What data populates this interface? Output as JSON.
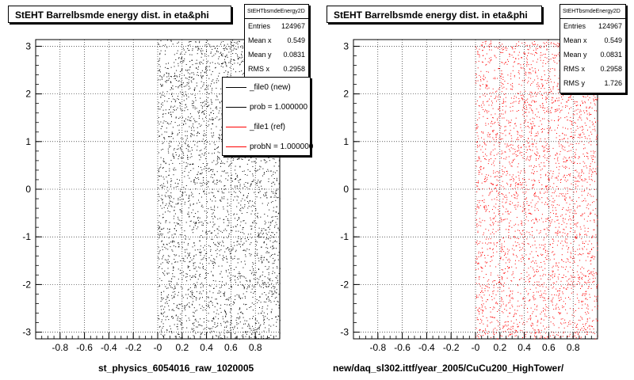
{
  "chart_data": [
    {
      "type": "scatter",
      "title": "StEHT Barrelbsmde energy dist. in eta&phi",
      "xlabel": "st_physics_6054016_raw_1020005",
      "ylabel": "",
      "xlim": [
        -1.0,
        1.0
      ],
      "ylim": [
        -3.14,
        3.14
      ],
      "x_ticks": [
        "-0.8",
        "-0.6",
        "-0.4",
        "-0.2",
        "-0",
        "0.2",
        "0.4",
        "0.6",
        "0.8"
      ],
      "y_ticks": [
        "-3",
        "-2",
        "-1",
        "0",
        "1",
        "2",
        "3"
      ],
      "grid": true,
      "marker_color": "#000000",
      "populated_region": {
        "x": [
          0.0,
          1.0
        ],
        "y": [
          -3.14,
          3.14
        ]
      },
      "stats": {
        "name": "StEHTbsmdeEnergy2D",
        "rows": [
          {
            "label": "Entries",
            "value": "124967"
          },
          {
            "label": "Mean x",
            "value": "0.549"
          },
          {
            "label": "Mean y",
            "value": "0.0831"
          },
          {
            "label": "RMS x",
            "value": "0.2958"
          }
        ]
      },
      "legend": [
        {
          "label": "_file0 (new)",
          "color": "#000000"
        },
        {
          "label": "prob = 1.000000",
          "color": "#000000"
        },
        {
          "label": "_file1 (ref)",
          "color": "#ff0000"
        },
        {
          "label": "probN = 1.000000",
          "color": "#ff0000"
        }
      ]
    },
    {
      "type": "scatter",
      "title": "StEHT Barrelbsmde energy dist. in eta&phi",
      "xlabel": "new/daq_sl302.ittf/year_2005/CuCu200_HighTower/",
      "ylabel": "",
      "xlim": [
        -1.0,
        1.0
      ],
      "ylim": [
        -3.14,
        3.14
      ],
      "x_ticks": [
        "-0.8",
        "-0.6",
        "-0.4",
        "-0.2",
        "-0",
        "0.2",
        "0.4",
        "0.6",
        "0.8"
      ],
      "y_ticks": [
        "-3",
        "-2",
        "-1",
        "0",
        "1",
        "2",
        "3"
      ],
      "grid": true,
      "marker_color": "#ff0000",
      "populated_region": {
        "x": [
          0.0,
          1.0
        ],
        "y": [
          -3.14,
          3.14
        ]
      },
      "stats": {
        "name": "StEHTbsmdeEnergy2D",
        "rows": [
          {
            "label": "Entries",
            "value": "124967"
          },
          {
            "label": "Mean x",
            "value": "0.549"
          },
          {
            "label": "Mean y",
            "value": "0.0831"
          },
          {
            "label": "RMS x",
            "value": "0.2958"
          },
          {
            "label": "RMS y",
            "value": "1.726"
          }
        ]
      }
    }
  ]
}
